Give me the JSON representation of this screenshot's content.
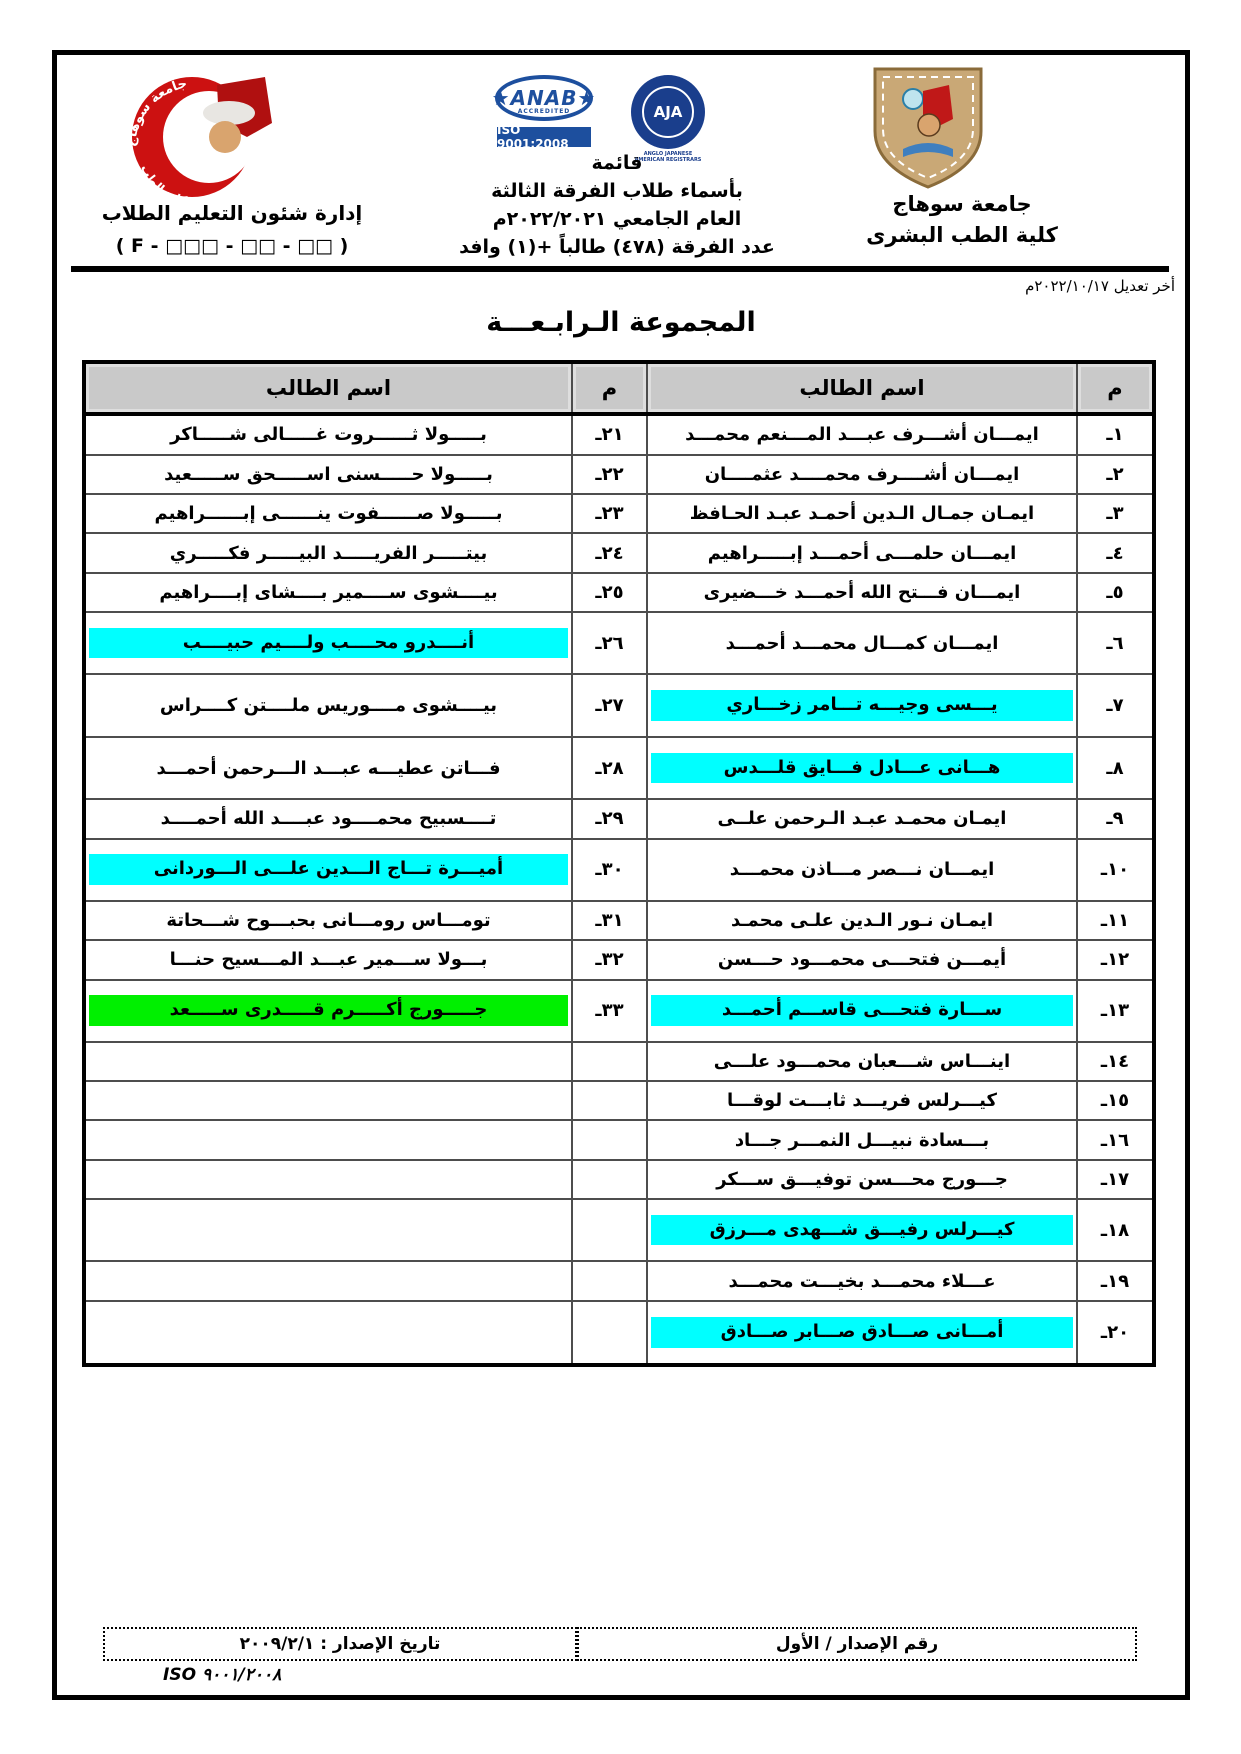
{
  "header": {
    "left": {
      "dept_line": "إدارة شئون التعليم الطلاب",
      "code_line": "( F - □□□  - □□ - □□ )"
    },
    "center": {
      "anab_label": "ANAB",
      "anab_sub": "ACCREDITED",
      "iso_badge": "ISO 9001:2008",
      "aja_label": "AJA",
      "aja_ring": "ANGLO JAPANESE AMERICAN REGISTRARS",
      "line1": "قائمة",
      "line2": "بأسماء طلاب الفرقة الثالثة",
      "line3": "العام الجامعي ٢٠٢٢/٢٠٢١م",
      "line4": "عدد الفرقة (٤٧٨) طالباً +(١) وافد"
    },
    "right": {
      "line1": "جامعة سوهاج",
      "line2": "كلية الطب البشرى"
    },
    "last_modified": "أخر تعديل ٢٠٢٢/١٠/١٧م"
  },
  "title": "المجموعة الـرابـعـــة",
  "table": {
    "header_num": "م",
    "header_name": "اسم الطالب",
    "rows": [
      {
        "nr": "١ـ",
        "r": "ايمـــان أشـــرف عبـــد المـــنعم محمـــد",
        "rh": "",
        "nl": "٢١ـ",
        "l": "بـــــولا ثــــــروت غـــــالى شـــــاكر",
        "lh": ""
      },
      {
        "nr": "٢ـ",
        "r": "ايمـــان أشــــرف محمــــد عثمــــان",
        "rh": "",
        "nl": "٢٢ـ",
        "l": "بـــــولا حـــــسنى اســـــحق ســـــعيد",
        "lh": ""
      },
      {
        "nr": "٣ـ",
        "r": "ايمـان جمـال الـدين أحمـد عبـد الحـافظ",
        "rh": "",
        "nl": "٢٣ـ",
        "l": "بـــــولا صــــــفوت ينــــــى إبــــــراهيم",
        "lh": ""
      },
      {
        "nr": "٤ـ",
        "r": "ايمـــان حلمـــى أحمـــد إبـــــراهيم",
        "rh": "",
        "nl": "٢٤ـ",
        "l": "بيتـــــر الفريـــــد البيـــــر فكـــــري",
        "lh": ""
      },
      {
        "nr": "٥ـ",
        "r": "ايمـــان فـــتح الله أحمـــد  خـــضيرى",
        "rh": "",
        "nl": "٢٥ـ",
        "l": "بيــــشوى ســــمير بــــشاى إبــــراهيم",
        "lh": ""
      },
      {
        "nr": "٦ـ",
        "r": "ايمـــان كمـــال محمـــد أحمـــد",
        "rh": "",
        "nl": "٢٦ـ",
        "l": "أنــــدرو محــــب ولــــيم حبيــــب",
        "lh": "cyan"
      },
      {
        "nr": "٧ـ",
        "r": "يـــسى وجيـــه تـــامر زخـــاري",
        "rh": "cyan",
        "nl": "٢٧ـ",
        "l": "بيــــشوى مــــوريس ملــــتن كــــراس",
        "lh": ""
      },
      {
        "nr": "٨ـ",
        "r": "هـــانى عـــادل فـــايق قلـــدس",
        "rh": "cyan",
        "nl": "٢٨ـ",
        "l": "فـــاتن عطيـــه عبـــد الـــرحمن أحمـــد",
        "lh": ""
      },
      {
        "nr": "٩ـ",
        "r": "ايمـان محمـد عبـد الـرحمن علــى",
        "rh": "",
        "nl": "٢٩ـ",
        "l": "تــــسبيح محمــــود عبــــد الله أحمــــد",
        "lh": ""
      },
      {
        "nr": "١٠ـ",
        "r": "ايمـــان نـــصر مـــاذن محمـــد",
        "rh": "",
        "nl": "٣٠ـ",
        "l": "أميـــرة تـــاج الـــدين علـــى الـــوردانى",
        "lh": "cyan"
      },
      {
        "nr": "١١ـ",
        "r": "ايمـان نـور الـدين علـى محمـد",
        "rh": "",
        "nl": "٣١ـ",
        "l": "تومـــاس رومـــانى بحبـــوح شـــحاتة",
        "lh": ""
      },
      {
        "nr": "١٢ـ",
        "r": "أيمـــن فتحـــى محمـــود حـــسن",
        "rh": "",
        "nl": "٣٢ـ",
        "l": "بـــولا ســـمير عبـــد المـــسيح حنـــا",
        "lh": ""
      },
      {
        "nr": "١٣ـ",
        "r": "ســـارة فتحـــى قاســـم أحمـــد",
        "rh": "cyan",
        "nl": "٣٣ـ",
        "l": "جـــــورج أكـــــرم قـــــدرى ســـــعد",
        "lh": "green"
      },
      {
        "nr": "١٤ـ",
        "r": "اينـــاس شـــعبان محمـــود علـــى",
        "rh": "",
        "nl": "",
        "l": "",
        "lh": ""
      },
      {
        "nr": "١٥ـ",
        "r": "كيـــرلس فريـــد ثابـــت لوقـــا",
        "rh": "",
        "nl": "",
        "l": "",
        "lh": ""
      },
      {
        "nr": "١٦ـ",
        "r": "بـــسادة نبيـــل النمـــر جـــاد",
        "rh": "",
        "nl": "",
        "l": "",
        "lh": ""
      },
      {
        "nr": "١٧ـ",
        "r": "جـــورج محـــسن توفيـــق ســـكر",
        "rh": "",
        "nl": "",
        "l": "",
        "lh": ""
      },
      {
        "nr": "١٨ـ",
        "r": "كيـــرلس رفيـــق شـــهدى مـــرزق",
        "rh": "cyan",
        "nl": "",
        "l": "",
        "lh": ""
      },
      {
        "nr": "١٩ـ",
        "r": "عـــلاء محمـــد بخيـــت محمـــد",
        "rh": "",
        "nl": "",
        "l": "",
        "lh": ""
      },
      {
        "nr": "٢٠ـ",
        "r": "أمـــانى صـــادق صـــابر صـــادق",
        "rh": "cyan",
        "nl": "",
        "l": "",
        "lh": ""
      }
    ]
  },
  "footer": {
    "issue_no": "رقم الإصدار / الأول",
    "issue_date": "تاريخ الإصدار : ٢٠٠٩/٢/١",
    "iso": "ISO ٩٠٠١/٢٠٠٨"
  },
  "colors": {
    "highlight_cyan": "#00FFFF",
    "highlight_green": "#00F000",
    "table_header_bg": "#C9C9C9",
    "cert_blue": "#1D4F9E",
    "emblem_tan": "#C9A876",
    "crescent_red": "#CC1111"
  }
}
